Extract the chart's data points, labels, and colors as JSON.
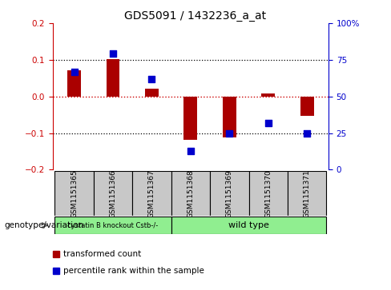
{
  "title": "GDS5091 / 1432236_a_at",
  "samples": [
    "GSM1151365",
    "GSM1151366",
    "GSM1151367",
    "GSM1151368",
    "GSM1151369",
    "GSM1151370",
    "GSM1151371"
  ],
  "red_values": [
    0.072,
    0.102,
    0.022,
    -0.118,
    -0.112,
    0.008,
    -0.052
  ],
  "blue_values": [
    0.068,
    0.118,
    0.047,
    -0.148,
    -0.102,
    -0.072,
    -0.102
  ],
  "ylim": [
    -0.2,
    0.2
  ],
  "yticks_left": [
    -0.2,
    -0.1,
    0.0,
    0.1,
    0.2
  ],
  "yticks_right": [
    0,
    25,
    50,
    75,
    100
  ],
  "bar_color": "#aa0000",
  "dot_color": "#0000cc",
  "group1_label": "cystatin B knockout Cstb-/-",
  "group2_label": "wild type",
  "group1_color": "#90ee90",
  "group2_color": "#90ee90",
  "genotype_label": "genotype/variation",
  "legend_red": "transformed count",
  "legend_blue": "percentile rank within the sample",
  "bar_width": 0.35,
  "dot_size": 40,
  "background_color": "#ffffff",
  "plot_bg": "#ffffff",
  "zero_line_color": "#cc0000",
  "right_axis_color": "#0000cc",
  "left_axis_color": "#cc0000",
  "box_color": "#c8c8c8",
  "title_fontsize": 10,
  "tick_fontsize": 7.5,
  "label_fontsize": 7.5,
  "sample_fontsize": 6.5
}
